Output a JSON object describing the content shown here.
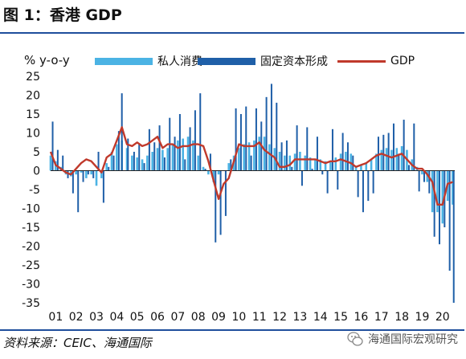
{
  "page": {
    "title": "图 1：香港 GDP",
    "source": "资料来源：CEIC、海通国际",
    "watermark": "海通国际宏观研究"
  },
  "colors": {
    "consumption": "#4bb3e4",
    "investment": "#1f5fa8",
    "gdp": "#c0392b",
    "rule": "#1f4e9c"
  },
  "icons": {
    "watermark": "wechat-icon"
  },
  "chart_data": {
    "type": "bar",
    "ylabel": "% y-o-y",
    "ylim": [
      -35,
      25
    ],
    "yticks": [
      25,
      20,
      15,
      10,
      5,
      0,
      -5,
      -10,
      -15,
      -20,
      -25,
      -30,
      -35
    ],
    "xlim": [
      2001,
      2020.85
    ],
    "xtick_labels": [
      "01",
      "02",
      "03",
      "04",
      "05",
      "06",
      "07",
      "08",
      "09",
      "10",
      "11",
      "12",
      "13",
      "14",
      "15",
      "16",
      "17",
      "18",
      "19",
      "20"
    ],
    "legend": [
      "私人消费",
      "固定资本形成",
      "GDP"
    ],
    "legend_position": "top",
    "grid": false,
    "series": [
      {
        "name": "私人消费",
        "type": "bar",
        "points": [
          [
            2001.0,
            4.0
          ],
          [
            2001.25,
            2.5
          ],
          [
            2001.5,
            1.0
          ],
          [
            2001.75,
            -1.0
          ],
          [
            2002.0,
            -1.5
          ],
          [
            2002.25,
            -1.0
          ],
          [
            2002.5,
            -0.5
          ],
          [
            2002.75,
            -2.0
          ],
          [
            2003.0,
            -1.0
          ],
          [
            2003.25,
            -4.0
          ],
          [
            2003.5,
            -2.0
          ],
          [
            2003.75,
            2.0
          ],
          [
            2004.0,
            5.0
          ],
          [
            2004.25,
            7.0
          ],
          [
            2004.5,
            8.0
          ],
          [
            2004.75,
            6.0
          ],
          [
            2005.0,
            4.0
          ],
          [
            2005.25,
            3.5
          ],
          [
            2005.5,
            3.0
          ],
          [
            2005.75,
            4.0
          ],
          [
            2006.0,
            5.0
          ],
          [
            2006.25,
            6.0
          ],
          [
            2006.5,
            5.5
          ],
          [
            2006.75,
            6.0
          ],
          [
            2007.0,
            7.0
          ],
          [
            2007.25,
            8.0
          ],
          [
            2007.5,
            8.5
          ],
          [
            2007.75,
            9.0
          ],
          [
            2008.0,
            8.0
          ],
          [
            2008.25,
            4.0
          ],
          [
            2008.5,
            1.0
          ],
          [
            2008.75,
            -1.0
          ],
          [
            2009.0,
            -3.0
          ],
          [
            2009.25,
            -1.0
          ],
          [
            2009.5,
            0.0
          ],
          [
            2009.75,
            2.0
          ],
          [
            2010.0,
            4.0
          ],
          [
            2010.25,
            6.0
          ],
          [
            2010.5,
            7.0
          ],
          [
            2010.75,
            7.5
          ],
          [
            2011.0,
            8.0
          ],
          [
            2011.25,
            9.0
          ],
          [
            2011.5,
            9.0
          ],
          [
            2011.75,
            7.0
          ],
          [
            2012.0,
            6.0
          ],
          [
            2012.25,
            5.0
          ],
          [
            2012.5,
            4.0
          ],
          [
            2012.75,
            4.0
          ],
          [
            2013.0,
            4.5
          ],
          [
            2013.25,
            5.0
          ],
          [
            2013.5,
            4.0
          ],
          [
            2013.75,
            3.5
          ],
          [
            2014.0,
            3.0
          ],
          [
            2014.25,
            3.0
          ],
          [
            2014.5,
            2.5
          ],
          [
            2014.75,
            2.5
          ],
          [
            2015.0,
            3.5
          ],
          [
            2015.25,
            4.5
          ],
          [
            2015.5,
            5.0
          ],
          [
            2015.75,
            4.5
          ],
          [
            2016.0,
            1.0
          ],
          [
            2016.25,
            1.5
          ],
          [
            2016.5,
            2.0
          ],
          [
            2016.75,
            3.0
          ],
          [
            2017.0,
            4.5
          ],
          [
            2017.25,
            5.5
          ],
          [
            2017.5,
            6.0
          ],
          [
            2017.75,
            5.5
          ],
          [
            2018.0,
            6.0
          ],
          [
            2018.25,
            6.5
          ],
          [
            2018.5,
            5.5
          ],
          [
            2018.75,
            3.0
          ],
          [
            2019.0,
            1.0
          ],
          [
            2019.25,
            -1.0
          ],
          [
            2019.5,
            -3.0
          ],
          [
            2019.75,
            -11.0
          ],
          [
            2020.0,
            -11.0
          ],
          [
            2020.25,
            -14.0
          ],
          [
            2020.5,
            -8.0
          ],
          [
            2020.75,
            -9.0
          ]
        ]
      },
      {
        "name": "固定资本形成",
        "type": "bar",
        "points": [
          [
            2001.1,
            13.0
          ],
          [
            2001.35,
            5.5
          ],
          [
            2001.6,
            4.0
          ],
          [
            2001.85,
            -2.0
          ],
          [
            2002.1,
            -6.0
          ],
          [
            2002.35,
            -11.0
          ],
          [
            2002.6,
            -3.0
          ],
          [
            2002.85,
            -1.0
          ],
          [
            2003.1,
            -2.0
          ],
          [
            2003.35,
            5.0
          ],
          [
            2003.6,
            -8.5
          ],
          [
            2003.85,
            1.0
          ],
          [
            2004.1,
            4.0
          ],
          [
            2004.35,
            10.5
          ],
          [
            2004.5,
            20.5
          ],
          [
            2004.8,
            8.5
          ],
          [
            2005.1,
            5.0
          ],
          [
            2005.35,
            7.0
          ],
          [
            2005.6,
            2.0
          ],
          [
            2005.85,
            11.0
          ],
          [
            2006.1,
            7.5
          ],
          [
            2006.35,
            12.0
          ],
          [
            2006.6,
            3.5
          ],
          [
            2006.85,
            14.0
          ],
          [
            2007.1,
            9.0
          ],
          [
            2007.35,
            15.0
          ],
          [
            2007.6,
            3.0
          ],
          [
            2007.85,
            11.5
          ],
          [
            2008.1,
            16.0
          ],
          [
            2008.35,
            20.5
          ],
          [
            2008.6,
            0.5
          ],
          [
            2008.85,
            4.5
          ],
          [
            2009.1,
            -19.0
          ],
          [
            2009.35,
            -17.0
          ],
          [
            2009.6,
            -12.0
          ],
          [
            2009.85,
            3.0
          ],
          [
            2010.1,
            16.5
          ],
          [
            2010.35,
            15.0
          ],
          [
            2010.6,
            17.0
          ],
          [
            2010.85,
            4.0
          ],
          [
            2011.1,
            16.5
          ],
          [
            2011.35,
            13.0
          ],
          [
            2011.6,
            19.5
          ],
          [
            2011.85,
            23.0
          ],
          [
            2012.1,
            18.0
          ],
          [
            2012.35,
            7.5
          ],
          [
            2012.6,
            8.0
          ],
          [
            2012.85,
            1.0
          ],
          [
            2013.1,
            12.0
          ],
          [
            2013.35,
            -4.0
          ],
          [
            2013.6,
            11.5
          ],
          [
            2013.85,
            0.5
          ],
          [
            2014.1,
            9.0
          ],
          [
            2014.35,
            -1.0
          ],
          [
            2014.6,
            -6.0
          ],
          [
            2014.85,
            11.0
          ],
          [
            2015.1,
            -5.0
          ],
          [
            2015.35,
            10.0
          ],
          [
            2015.6,
            7.5
          ],
          [
            2015.85,
            4.0
          ],
          [
            2016.1,
            -7.0
          ],
          [
            2016.35,
            -11.0
          ],
          [
            2016.6,
            -8.0
          ],
          [
            2016.85,
            -6.0
          ],
          [
            2017.1,
            9.0
          ],
          [
            2017.35,
            9.5
          ],
          [
            2017.6,
            10.0
          ],
          [
            2017.85,
            12.5
          ],
          [
            2018.1,
            4.5
          ],
          [
            2018.35,
            13.5
          ],
          [
            2018.6,
            1.5
          ],
          [
            2018.85,
            12.5
          ],
          [
            2019.1,
            -5.5
          ],
          [
            2019.35,
            -3.0
          ],
          [
            2019.6,
            -6.0
          ],
          [
            2019.85,
            -17.5
          ],
          [
            2020.1,
            -19.5
          ],
          [
            2020.35,
            -15.0
          ],
          [
            2020.6,
            -26.5
          ],
          [
            2020.8,
            -35.0
          ]
        ]
      },
      {
        "name": "GDP",
        "type": "line",
        "points": [
          [
            2001.0,
            5.0
          ],
          [
            2001.25,
            1.5
          ],
          [
            2001.5,
            0.5
          ],
          [
            2001.75,
            -0.5
          ],
          [
            2002.0,
            -1.0
          ],
          [
            2002.25,
            0.5
          ],
          [
            2002.5,
            2.0
          ],
          [
            2002.75,
            3.0
          ],
          [
            2003.0,
            2.5
          ],
          [
            2003.25,
            1.0
          ],
          [
            2003.5,
            -0.5
          ],
          [
            2003.75,
            3.5
          ],
          [
            2004.0,
            4.5
          ],
          [
            2004.25,
            8.0
          ],
          [
            2004.5,
            11.5
          ],
          [
            2004.75,
            7.0
          ],
          [
            2005.0,
            6.5
          ],
          [
            2005.25,
            7.5
          ],
          [
            2005.5,
            6.5
          ],
          [
            2005.75,
            7.0
          ],
          [
            2006.0,
            8.0
          ],
          [
            2006.25,
            9.0
          ],
          [
            2006.5,
            6.0
          ],
          [
            2006.75,
            7.0
          ],
          [
            2007.0,
            7.0
          ],
          [
            2007.25,
            6.0
          ],
          [
            2007.5,
            6.5
          ],
          [
            2007.75,
            6.5
          ],
          [
            2008.0,
            7.0
          ],
          [
            2008.25,
            7.0
          ],
          [
            2008.5,
            6.5
          ],
          [
            2008.75,
            2.5
          ],
          [
            2009.0,
            -2.5
          ],
          [
            2009.25,
            -7.5
          ],
          [
            2009.5,
            -3.5
          ],
          [
            2009.75,
            -2.0
          ],
          [
            2010.0,
            2.5
          ],
          [
            2010.25,
            7.0
          ],
          [
            2010.5,
            6.5
          ],
          [
            2010.75,
            6.5
          ],
          [
            2011.0,
            6.5
          ],
          [
            2011.25,
            7.5
          ],
          [
            2011.5,
            5.5
          ],
          [
            2011.75,
            4.5
          ],
          [
            2012.0,
            3.5
          ],
          [
            2012.25,
            1.0
          ],
          [
            2012.5,
            1.0
          ],
          [
            2012.75,
            1.5
          ],
          [
            2013.0,
            3.0
          ],
          [
            2013.25,
            3.0
          ],
          [
            2013.5,
            3.0
          ],
          [
            2013.75,
            3.0
          ],
          [
            2014.0,
            3.0
          ],
          [
            2014.25,
            2.5
          ],
          [
            2014.5,
            2.0
          ],
          [
            2014.75,
            2.5
          ],
          [
            2015.0,
            2.5
          ],
          [
            2015.25,
            3.0
          ],
          [
            2015.5,
            2.5
          ],
          [
            2015.75,
            2.0
          ],
          [
            2016.0,
            1.0
          ],
          [
            2016.25,
            1.5
          ],
          [
            2016.5,
            2.0
          ],
          [
            2016.75,
            3.0
          ],
          [
            2017.0,
            4.0
          ],
          [
            2017.25,
            4.5
          ],
          [
            2017.5,
            4.0
          ],
          [
            2017.75,
            3.5
          ],
          [
            2018.0,
            4.0
          ],
          [
            2018.25,
            4.5
          ],
          [
            2018.5,
            3.0
          ],
          [
            2018.75,
            1.5
          ],
          [
            2019.0,
            0.5
          ],
          [
            2019.25,
            0.5
          ],
          [
            2019.5,
            -1.0
          ],
          [
            2019.75,
            -3.0
          ],
          [
            2020.0,
            -9.0
          ],
          [
            2020.25,
            -9.0
          ],
          [
            2020.5,
            -3.5
          ],
          [
            2020.75,
            -3.0
          ]
        ]
      }
    ]
  }
}
